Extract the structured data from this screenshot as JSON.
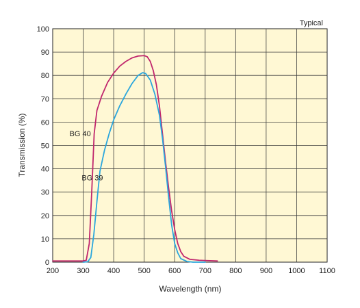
{
  "chart_data": {
    "type": "line",
    "title": "",
    "annotation_top_right": "Typical",
    "xlabel": "Wavelength (nm)",
    "ylabel": "Transmission (%)",
    "xlim": [
      200,
      1100
    ],
    "ylim": [
      0,
      100
    ],
    "x_ticks": [
      "200",
      "300",
      "400",
      "500",
      "600",
      "700",
      "800",
      "900",
      "1000",
      "1100"
    ],
    "y_ticks": [
      "0",
      "10",
      "20",
      "30",
      "40",
      "50",
      "60",
      "70",
      "80",
      "90",
      "100"
    ],
    "grid": true,
    "background_color": "#fff8d4",
    "grid_color": "#3a3a3a",
    "series": [
      {
        "name": "BG 40",
        "color": "#c0266d",
        "label_at": [
          290,
          54
        ],
        "points": [
          [
            200,
            0.5
          ],
          [
            300,
            0.5
          ],
          [
            310,
            0.8
          ],
          [
            320,
            8
          ],
          [
            328,
            30
          ],
          [
            336,
            55
          ],
          [
            345,
            65
          ],
          [
            360,
            71
          ],
          [
            380,
            77
          ],
          [
            400,
            81
          ],
          [
            420,
            84
          ],
          [
            440,
            86
          ],
          [
            460,
            87.5
          ],
          [
            480,
            88.3
          ],
          [
            500,
            88.5
          ],
          [
            510,
            88
          ],
          [
            520,
            86
          ],
          [
            530,
            82
          ],
          [
            540,
            76
          ],
          [
            550,
            67
          ],
          [
            560,
            55
          ],
          [
            570,
            43
          ],
          [
            580,
            32
          ],
          [
            590,
            22
          ],
          [
            600,
            14
          ],
          [
            610,
            8
          ],
          [
            620,
            4.5
          ],
          [
            630,
            2.5
          ],
          [
            650,
            1.2
          ],
          [
            680,
            0.8
          ],
          [
            700,
            0.7
          ],
          [
            740,
            0.5
          ]
        ]
      },
      {
        "name": "BG 39",
        "color": "#2aa6dd",
        "label_at": [
          330,
          35
        ],
        "points": [
          [
            300,
            0
          ],
          [
            315,
            0.2
          ],
          [
            325,
            2
          ],
          [
            335,
            12
          ],
          [
            345,
            26
          ],
          [
            355,
            39
          ],
          [
            370,
            48
          ],
          [
            385,
            55
          ],
          [
            400,
            61
          ],
          [
            420,
            67
          ],
          [
            440,
            72
          ],
          [
            460,
            76.5
          ],
          [
            480,
            80
          ],
          [
            495,
            81.2
          ],
          [
            505,
            80.8
          ],
          [
            520,
            78
          ],
          [
            535,
            72
          ],
          [
            550,
            63
          ],
          [
            560,
            53
          ],
          [
            570,
            41
          ],
          [
            580,
            28
          ],
          [
            590,
            16
          ],
          [
            600,
            8
          ],
          [
            610,
            4
          ],
          [
            620,
            1.5
          ],
          [
            640,
            0.3
          ],
          [
            660,
            0
          ],
          [
            700,
            0
          ]
        ]
      }
    ]
  }
}
